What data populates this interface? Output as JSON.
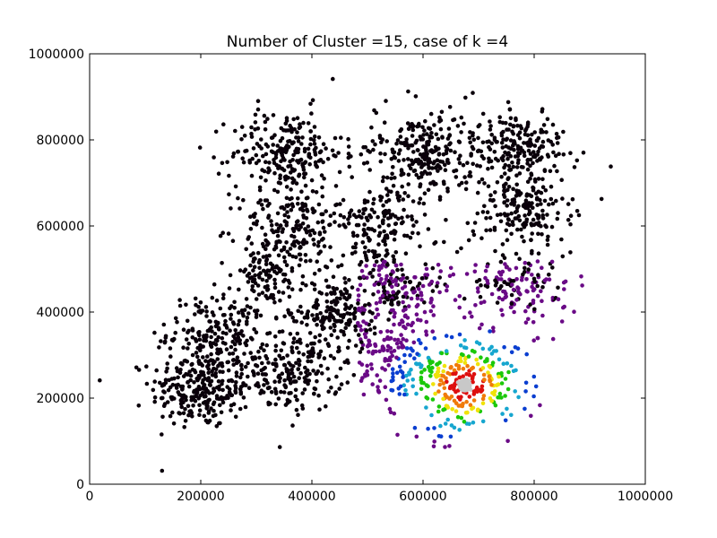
{
  "chart_data": {
    "type": "scatter",
    "title": "Number of Cluster =15, case of k =4",
    "xlabel": "",
    "ylabel": "",
    "xlim": [
      0,
      1000000
    ],
    "ylim": [
      0,
      1000000
    ],
    "xticks": [
      0,
      200000,
      400000,
      600000,
      800000,
      1000000
    ],
    "yticks": [
      0,
      200000,
      400000,
      600000,
      800000,
      1000000
    ],
    "xtick_labels": [
      "0",
      "200000",
      "400000",
      "600000",
      "800000",
      "1000000"
    ],
    "ytick_labels": [
      "0",
      "200000",
      "400000",
      "600000",
      "800000",
      "1000000"
    ],
    "grid": false,
    "legend": "none",
    "colormap": "density-based: black (outer) to purple, blue, cyan, green, yellow, red, grey (densest core)",
    "colors": {
      "background": "#ffffff",
      "axes": "#000000",
      "black": "#0a000a",
      "purple": "#6a0a86",
      "blue": "#0a3ed0",
      "cyan": "#16a6cf",
      "green": "#1bc80a",
      "yellow": "#f0e20a",
      "orange": "#f07a0a",
      "red": "#dd0f0f",
      "grey": "#c8c8c8"
    },
    "clusters": [
      {
        "center": [
          200000,
          220000
        ],
        "spread": 45000,
        "n": 260
      },
      {
        "center": [
          230000,
          350000
        ],
        "spread": 45000,
        "n": 200
      },
      {
        "center": [
          365000,
          260000
        ],
        "spread": 45000,
        "n": 200
      },
      {
        "center": [
          310000,
          480000
        ],
        "spread": 30000,
        "n": 80
      },
      {
        "center": [
          355000,
          770000
        ],
        "spread": 50000,
        "n": 240
      },
      {
        "center": [
          360000,
          590000
        ],
        "spread": 45000,
        "n": 170
      },
      {
        "center": [
          440000,
          400000
        ],
        "spread": 45000,
        "n": 200
      },
      {
        "center": [
          520000,
          600000
        ],
        "spread": 45000,
        "n": 170
      },
      {
        "center": [
          555000,
          450000
        ],
        "spread": 45000,
        "n": 200
      },
      {
        "center": [
          600000,
          770000
        ],
        "spread": 50000,
        "n": 250
      },
      {
        "center": [
          770000,
          780000
        ],
        "spread": 45000,
        "n": 200
      },
      {
        "center": [
          775000,
          640000
        ],
        "spread": 45000,
        "n": 180
      },
      {
        "center": [
          770000,
          460000
        ],
        "spread": 50000,
        "n": 170
      },
      {
        "center": [
          535000,
          300000
        ],
        "spread": 45000,
        "n": 120
      },
      {
        "center": [
          675000,
          230000
        ],
        "spread": 55000,
        "n": 300
      }
    ],
    "highlight_cluster": {
      "center": [
        675000,
        230000
      ],
      "note": "k=4 neighbourhood colored by rank"
    }
  }
}
